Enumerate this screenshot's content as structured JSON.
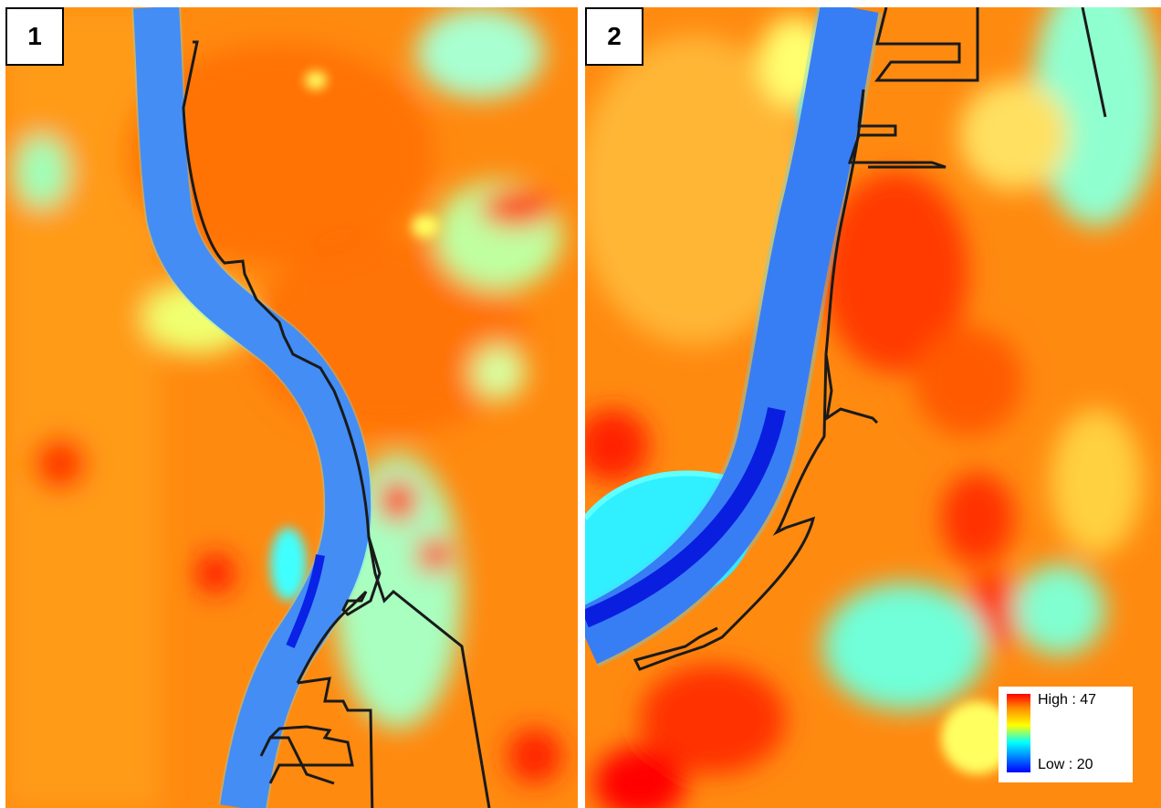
{
  "panels": [
    {
      "label": "1"
    },
    {
      "label": "2"
    }
  ],
  "legend": {
    "high_label": "High : 47",
    "low_label": "Low : 20",
    "colors": [
      "#ff0000",
      "#ff8c00",
      "#ffff00",
      "#00ffff",
      "#0000ff"
    ]
  },
  "colors": {
    "hot": "#ff2a00",
    "warm": "#ff7a00",
    "mild": "#ffd000",
    "cool": "#80ffb0",
    "cold": "#00e0ff",
    "water": "#2b5fff",
    "deep_water": "#0a22e6",
    "boundary": "#1a1a1a"
  }
}
